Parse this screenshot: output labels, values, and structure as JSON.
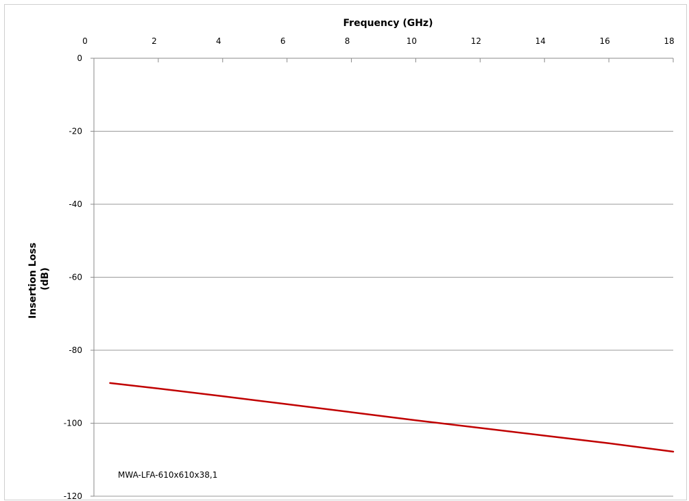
{
  "chart_data": {
    "type": "line",
    "xlabel": "Frequency (GHz)",
    "ylabel_lines": [
      "Insertion Loss",
      "(dB)"
    ],
    "x_axis_position": "top",
    "xlim": [
      0,
      18
    ],
    "ylim": [
      -120,
      0
    ],
    "x_ticks": [
      "0",
      "2",
      "4",
      "6",
      "8",
      "10",
      "12",
      "14",
      "16",
      "18"
    ],
    "y_ticks": [
      "0",
      "-20",
      "-40",
      "-60",
      "-80",
      "-100",
      "-120"
    ],
    "grid": "horizontal",
    "annotation": "MWA-LFA-610x610x38,1",
    "series": [
      {
        "color": "#c00000",
        "x": [
          0.5,
          2,
          4,
          6,
          8,
          10,
          12,
          14,
          16,
          18
        ],
        "y": [
          -89,
          -90.5,
          -92.6,
          -94.8,
          -97,
          -99.2,
          -101.3,
          -103.4,
          -105.5,
          -107.8
        ]
      }
    ]
  }
}
